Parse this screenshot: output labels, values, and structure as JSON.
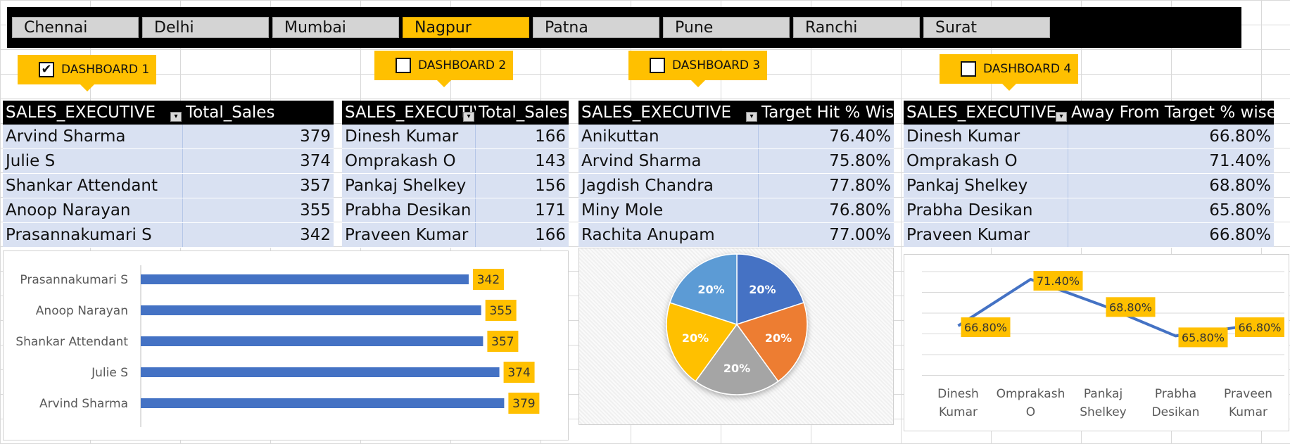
{
  "slicer": {
    "cities": [
      "Chennai",
      "Delhi",
      "Mumbai",
      "Nagpur",
      "Patna",
      "Pune",
      "Ranchi",
      "Surat"
    ],
    "active": "Nagpur"
  },
  "dashboards": [
    {
      "label": "DASHBOARD 1",
      "checked": true,
      "mark": "✔"
    },
    {
      "label": "DASHBOARD 2",
      "checked": false,
      "mark": ""
    },
    {
      "label": "DASHBOARD 3",
      "checked": false,
      "mark": ""
    },
    {
      "label": "DASHBOARD 4",
      "checked": false,
      "mark": ""
    }
  ],
  "tables": [
    {
      "col1": "SALES_EXECUTIVE",
      "col2": "Total_Sales",
      "rows": [
        [
          "Arvind Sharma",
          "379"
        ],
        [
          "Julie S",
          "374"
        ],
        [
          "Shankar Attendant",
          "357"
        ],
        [
          "Anoop Narayan",
          "355"
        ],
        [
          "Prasannakumari S",
          "342"
        ]
      ]
    },
    {
      "col1": "SALES_EXECUTIVE",
      "col2": "Total_Sales",
      "rows": [
        [
          "Dinesh Kumar",
          "166"
        ],
        [
          "Omprakash O",
          "143"
        ],
        [
          "Pankaj Shelkey",
          "156"
        ],
        [
          "Prabha Desikan",
          "171"
        ],
        [
          "Praveen Kumar",
          "166"
        ]
      ]
    },
    {
      "col1": "SALES_EXECUTIVE",
      "col2": "Target Hit % Wise",
      "rows": [
        [
          "Anikuttan",
          "76.40%"
        ],
        [
          "Arvind Sharma",
          "75.80%"
        ],
        [
          "Jagdish Chandra",
          "77.80%"
        ],
        [
          "Miny Mole",
          "76.80%"
        ],
        [
          "Rachita Anupam",
          "77.00%"
        ]
      ]
    },
    {
      "col1": "SALES_EXECUTIVE",
      "col2": "Away From Target % wise",
      "rows": [
        [
          "Dinesh Kumar",
          "66.80%"
        ],
        [
          "Omprakash O",
          "71.40%"
        ],
        [
          "Pankaj Shelkey",
          "68.80%"
        ],
        [
          "Prabha Desikan",
          "65.80%"
        ],
        [
          "Praveen Kumar",
          "66.80%"
        ]
      ]
    }
  ],
  "colors": {
    "accent": "#ffc000",
    "bar": "#4472c4",
    "line": "#4472c4",
    "row": "#d9e1f2"
  },
  "chart_data": [
    {
      "type": "bar",
      "orientation": "horizontal",
      "categories": [
        "Prasannakumari S",
        "Anoop Narayan",
        "Shankar Attendant",
        "Julie S",
        "Arvind Sharma"
      ],
      "values": [
        342,
        355,
        357,
        374,
        379
      ],
      "labels": [
        "342",
        "355",
        "357",
        "374",
        "379"
      ],
      "xlim": [
        0,
        400
      ]
    },
    {
      "type": "pie",
      "values": [
        20,
        20,
        20,
        20,
        20
      ],
      "labels": [
        "20%",
        "20%",
        "20%",
        "20%",
        "20%"
      ],
      "colors": [
        "#4472c4",
        "#ed7d31",
        "#a5a5a5",
        "#ffc000",
        "#5b9bd5"
      ]
    },
    {
      "type": "line",
      "categories": [
        "Dinesh Kumar",
        "Omprakash O",
        "Pankaj Shelkey",
        "Prabha Desikan",
        "Praveen Kumar"
      ],
      "category_lines": [
        [
          "Dinesh",
          "Kumar"
        ],
        [
          "Omprakash",
          "O"
        ],
        [
          "Pankaj",
          "Shelkey"
        ],
        [
          "Prabha",
          "Desikan"
        ],
        [
          "Praveen",
          "Kumar"
        ]
      ],
      "values": [
        66.8,
        71.4,
        68.8,
        65.8,
        66.8
      ],
      "labels": [
        "66.80%",
        "71.40%",
        "68.80%",
        "65.80%",
        "66.80%"
      ],
      "ylim": [
        62,
        73
      ],
      "grid": true
    }
  ]
}
